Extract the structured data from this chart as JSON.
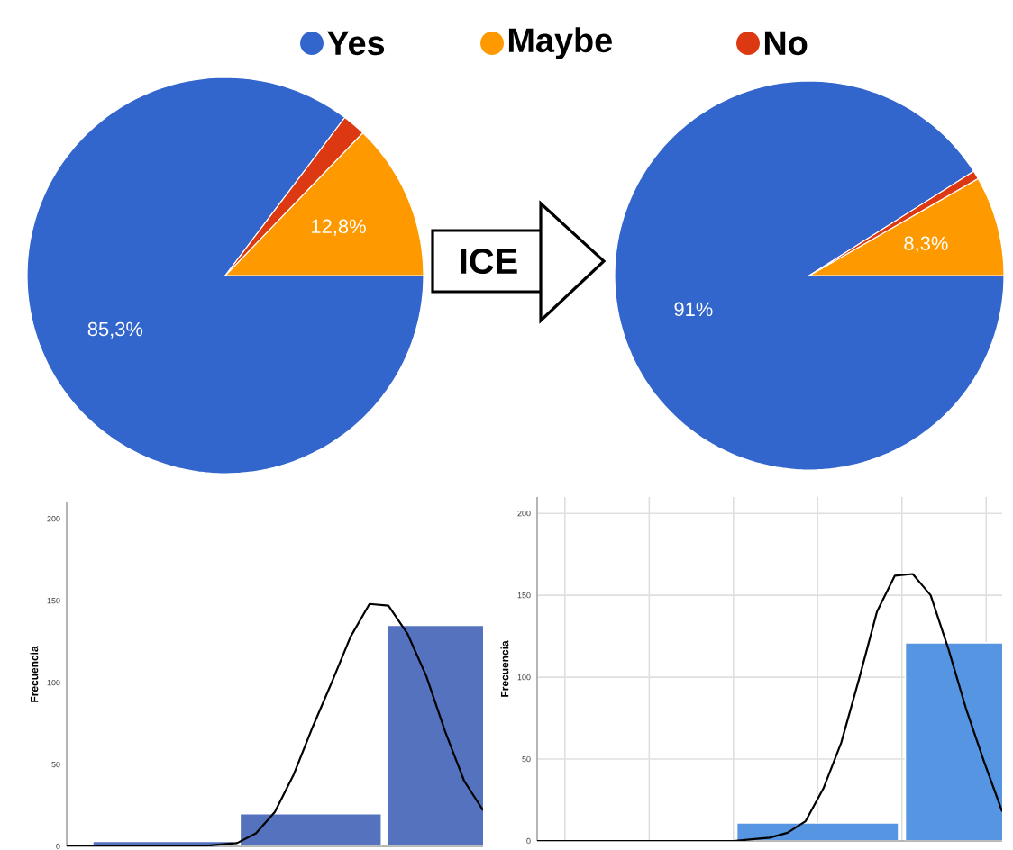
{
  "chart_data": [
    {
      "type": "pie",
      "categories": [
        "Yes",
        "Maybe",
        "No"
      ],
      "values": [
        85.3,
        12.8,
        1.9
      ],
      "colors": [
        "#3366cc",
        "#ff9900",
        "#dc3912"
      ],
      "value_labels": [
        "85,3%",
        "12,8%",
        null
      ],
      "legend": "top",
      "annotations": [
        "ICE"
      ]
    },
    {
      "type": "pie",
      "categories": [
        null,
        null,
        null
      ],
      "values": [
        91,
        8.3,
        0.7
      ],
      "colors": [
        "#3366cc",
        "#ff9900",
        "#dc3912"
      ],
      "value_labels": [
        "91%",
        "8,3%",
        null
      ]
    },
    {
      "type": "bar",
      "ylabel": "Frecuencia",
      "categories": [
        null,
        null,
        null
      ],
      "values": [
        3,
        20,
        135
      ],
      "color": "#5472be",
      "ylim": [
        0,
        210
      ],
      "yticks": [
        0,
        50,
        100,
        150,
        200
      ],
      "tick_labels": "y"
    },
    {
      "type": "bar",
      "ylabel": "Frecuencia",
      "categories": [
        null,
        null,
        null
      ],
      "values": [
        null,
        11,
        121
      ],
      "color": "#5595e1",
      "ylim": [
        0,
        210
      ],
      "yticks": [
        0,
        50,
        100,
        150,
        200
      ],
      "tick_labels": "y",
      "grid": true
    },
    {
      "type": "line",
      "categories": [
        null,
        null,
        null,
        null,
        null,
        null,
        null,
        null,
        null,
        null,
        null,
        null,
        null,
        null,
        null,
        null,
        null,
        null,
        null,
        null,
        null,
        null,
        null
      ],
      "values": [
        0,
        0,
        0,
        0,
        0,
        0,
        0,
        0,
        1,
        2,
        8,
        21,
        44,
        73,
        100,
        128,
        148,
        147,
        130,
        104,
        70,
        40,
        22
      ],
      "color": "#000000",
      "ylim": [
        0,
        210
      ],
      "yticks": [
        0,
        50,
        100,
        150,
        200
      ],
      "tick_labels": false
    },
    {
      "type": "line",
      "categories": [
        null,
        null,
        null,
        null,
        null,
        null,
        null,
        null,
        null,
        null,
        null,
        null,
        null,
        null,
        null,
        null,
        null,
        null,
        null,
        null,
        null,
        null,
        null,
        null,
        null,
        null,
        null
      ],
      "values": [
        0,
        0,
        0,
        0,
        0,
        0,
        0,
        0,
        0,
        0,
        0,
        0,
        1,
        2,
        5,
        12,
        32,
        60,
        99,
        140,
        162,
        163,
        150,
        117,
        80,
        48,
        18
      ],
      "color": "#000000",
      "ylim": [
        0,
        210
      ],
      "yticks": [
        0,
        50,
        100,
        150,
        200
      ],
      "tick_labels": false
    }
  ]
}
